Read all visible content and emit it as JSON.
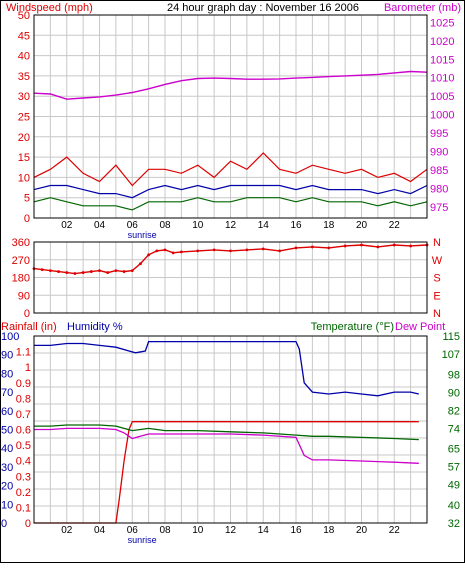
{
  "colors": {
    "red": "#dd0000",
    "blue": "#0000aa",
    "green": "#006600",
    "magenta": "#cc00cc",
    "grid": "#c8c8c8",
    "frame": "#000000"
  },
  "top": {
    "left_label": "Windspeed (mph)",
    "title": "24 hour graph day : November 16 2006",
    "right_label": "Barometer (mb)"
  },
  "x_ticks": [
    "02",
    "04",
    "06",
    "08",
    "10",
    "12",
    "14",
    "16",
    "18",
    "20",
    "22"
  ],
  "x_tick_hours": [
    2,
    4,
    6,
    8,
    10,
    12,
    14,
    16,
    18,
    20,
    22
  ],
  "sunrise_label": "sunrise",
  "sunrise_hour": 6.6,
  "dir_letters": [
    "N",
    "W",
    "S",
    "E",
    "N"
  ],
  "bottom": {
    "left_red_label": "Rainfall (in)",
    "left_blue_label": "Humidity %",
    "right_green_label": "Temperature (°F)",
    "right_magenta_label": "Dew Point"
  },
  "chart_data": [
    {
      "type": "line",
      "panel": "wind-barometer",
      "title": "24 hour graph day : November 16 2006",
      "xlim": [
        0,
        24
      ],
      "y_left": {
        "label": "Windspeed (mph)",
        "ylim": [
          0,
          50
        ],
        "ticks": [
          0,
          5,
          10,
          15,
          20,
          25,
          30,
          35,
          40,
          45,
          50
        ]
      },
      "y_right": {
        "label": "Barometer (mb)",
        "ylim": [
          972,
          1027
        ],
        "ticks": [
          975,
          980,
          985,
          990,
          995,
          1000,
          1005,
          1010,
          1015,
          1020,
          1025
        ]
      },
      "grid": true,
      "series": [
        {
          "axis": "right",
          "color": "#cc00cc",
          "x": [
            0,
            1,
            2,
            3,
            4,
            5,
            6,
            7,
            8,
            9,
            10,
            11,
            12,
            13,
            14,
            15,
            16,
            17,
            18,
            19,
            20,
            21,
            22,
            23,
            24
          ],
          "y": [
            1005.8,
            1005.6,
            1004.2,
            1004.5,
            1004.8,
            1005.3,
            1006.0,
            1007.0,
            1008.2,
            1009.2,
            1009.8,
            1009.9,
            1009.8,
            1009.6,
            1009.6,
            1009.7,
            1009.9,
            1010.1,
            1010.3,
            1010.5,
            1010.7,
            1010.9,
            1011.3,
            1011.7,
            1011.5
          ]
        },
        {
          "axis": "left",
          "color": "#dd0000",
          "x": [
            0,
            1,
            2,
            3,
            4,
            5,
            6,
            7,
            8,
            9,
            10,
            11,
            12,
            13,
            14,
            15,
            16,
            17,
            18,
            19,
            20,
            21,
            22,
            23,
            24
          ],
          "y": [
            10,
            12,
            15,
            11,
            9,
            13,
            8,
            12,
            12,
            11,
            13,
            10,
            14,
            12,
            16,
            12,
            11,
            13,
            12,
            11,
            12,
            10,
            11,
            9,
            12
          ]
        },
        {
          "axis": "left",
          "color": "#0000aa",
          "x": [
            0,
            1,
            2,
            3,
            4,
            5,
            6,
            7,
            8,
            9,
            10,
            11,
            12,
            13,
            14,
            15,
            16,
            17,
            18,
            19,
            20,
            21,
            22,
            23,
            24
          ],
          "y": [
            7,
            8,
            8,
            7,
            6,
            6,
            5,
            7,
            8,
            7,
            8,
            7,
            8,
            8,
            8,
            8,
            7,
            8,
            7,
            7,
            7,
            6,
            7,
            6,
            8
          ]
        },
        {
          "axis": "left",
          "color": "#006600",
          "x": [
            0,
            1,
            2,
            3,
            4,
            5,
            6,
            7,
            8,
            9,
            10,
            11,
            12,
            13,
            14,
            15,
            16,
            17,
            18,
            19,
            20,
            21,
            22,
            23,
            24
          ],
          "y": [
            4,
            5,
            4,
            3,
            3,
            3,
            2,
            4,
            4,
            4,
            5,
            4,
            4,
            5,
            5,
            5,
            4,
            5,
            4,
            4,
            4,
            3,
            4,
            3,
            4
          ]
        }
      ]
    },
    {
      "type": "scatter",
      "panel": "wind-direction",
      "xlim": [
        0,
        24
      ],
      "ylim": [
        0,
        360
      ],
      "ticks": [
        0,
        90,
        180,
        270,
        360
      ],
      "tick_labels": [
        "0",
        "90",
        "180",
        "270",
        "360"
      ],
      "grid": true,
      "series": [
        {
          "color": "#dd0000",
          "x": [
            0,
            0.5,
            1,
            1.5,
            2,
            2.5,
            3,
            3.5,
            4,
            4.5,
            5,
            5.5,
            6,
            6.5,
            7,
            7.5,
            8,
            8.5,
            9,
            10,
            11,
            12,
            13,
            14,
            15,
            16,
            17,
            18,
            19,
            20,
            21,
            22,
            23,
            24
          ],
          "y": [
            225,
            220,
            215,
            210,
            205,
            200,
            205,
            210,
            215,
            205,
            215,
            210,
            215,
            250,
            295,
            315,
            320,
            305,
            310,
            315,
            320,
            315,
            320,
            325,
            315,
            330,
            335,
            330,
            340,
            345,
            335,
            345,
            340,
            345
          ]
        }
      ]
    },
    {
      "type": "line",
      "panel": "rain-humidity-temperature",
      "xlim": [
        0,
        24
      ],
      "y_rain": {
        "label": "Rainfall (in)",
        "ylim": [
          0,
          1.2
        ],
        "ticks": [
          0,
          0.1,
          0.2,
          0.3,
          0.4,
          0.5,
          0.6,
          0.7,
          0.8,
          0.9,
          1,
          1.1
        ]
      },
      "y_humidity": {
        "label": "Humidity %",
        "ylim": [
          0,
          100
        ],
        "ticks": [
          0,
          10,
          20,
          30,
          40,
          50,
          60,
          70,
          80,
          90,
          100
        ]
      },
      "y_temperature": {
        "label": "Temperature (°F)",
        "ylim": [
          32,
          115
        ],
        "ticks": [
          32,
          40,
          49,
          57,
          65,
          74,
          82,
          90,
          98,
          107,
          115
        ]
      },
      "grid": true,
      "series": [
        {
          "name": "Rainfall (in)",
          "axis": "rain",
          "color": "#dd0000",
          "x": [
            0,
            5.0,
            5.2,
            5.5,
            5.8,
            6.0,
            6.5,
            10,
            16.0,
            16.5,
            20,
            23.0,
            23.5
          ],
          "y": [
            0,
            0,
            0.15,
            0.4,
            0.6,
            0.65,
            0.65,
            0.65,
            0.65,
            0.65,
            0.65,
            0.65,
            0.65
          ]
        },
        {
          "name": "Humidity %",
          "axis": "humidity",
          "color": "#0000aa",
          "x": [
            0,
            1,
            2,
            3,
            4,
            5,
            5.8,
            6.2,
            6.8,
            7,
            8,
            10,
            12,
            14,
            16,
            16.2,
            16.5,
            17,
            18,
            19,
            20,
            21,
            22,
            23,
            23.5
          ],
          "y": [
            95,
            95,
            96,
            96,
            95,
            94,
            92,
            91,
            92,
            97,
            97,
            97,
            97,
            97,
            97,
            93,
            75,
            70,
            69,
            70,
            69,
            68,
            70,
            70,
            69
          ]
        },
        {
          "name": "Temperature (°F)",
          "axis": "temperature",
          "color": "#006600",
          "x": [
            0,
            1,
            2,
            3,
            4,
            5,
            6,
            7,
            8,
            10,
            12,
            14,
            16,
            17,
            18,
            20,
            22,
            23.5
          ],
          "y": [
            75,
            75,
            75.5,
            75.5,
            75.5,
            75,
            73,
            74,
            73,
            73,
            72.5,
            72,
            71,
            70.5,
            70.5,
            70,
            69.5,
            69
          ]
        },
        {
          "name": "Dew Point",
          "axis": "temperature",
          "color": "#cc00cc",
          "x": [
            0,
            1,
            2,
            3,
            4,
            5,
            5.5,
            6.0,
            6.5,
            7.0,
            8,
            10,
            12,
            14,
            16,
            16.5,
            17,
            18,
            20,
            22,
            23.5
          ],
          "y": [
            73.5,
            73.5,
            74,
            74,
            74,
            73.5,
            72,
            69.5,
            70.5,
            71.5,
            71.5,
            71.5,
            71.5,
            71,
            70,
            62,
            60,
            60,
            59.5,
            59,
            58.5
          ]
        }
      ]
    }
  ]
}
